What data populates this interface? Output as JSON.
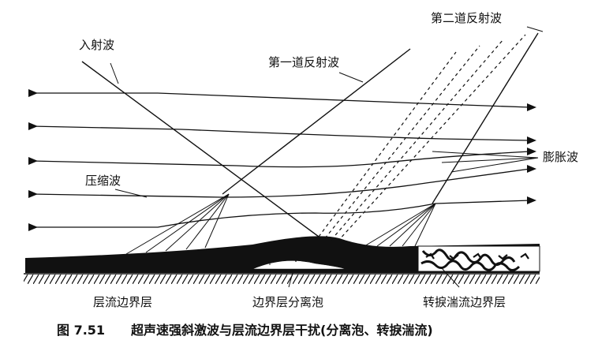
{
  "labels": {
    "incident_wave": "入射波",
    "first_reflection": "第一道反射波",
    "second_reflection": "第二道反射波",
    "compression_wave": "压缩波",
    "expansion_wave": "膨胀波",
    "laminar_boundary_layer": "层流边界层",
    "separation_bubble": "边界层分离泡",
    "transition_turbulent_layer": "转捩湍流边界层"
  },
  "caption": {
    "figure_number": "图 7.51",
    "text": "超声速强斜激波与层流边界层干扰(分离泡、转捩湍流)"
  },
  "colors": {
    "ink": "#111111",
    "background": "#ffffff"
  }
}
